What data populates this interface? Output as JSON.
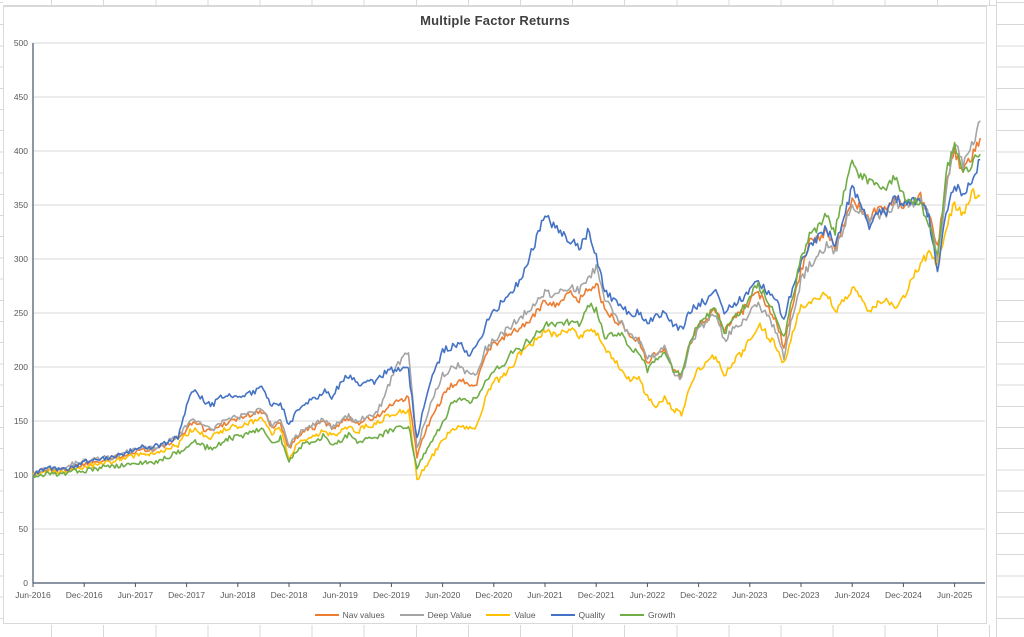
{
  "chart_title": "Multiple Factor Returns",
  "chart_data": {
    "type": "line",
    "title": "Multiple Factor Returns",
    "x_unit": "monthly",
    "x_start": "Jun-2016",
    "x_end": "Sep-2025",
    "x_tick_labels": [
      "Jun-2016",
      "Dec-2016",
      "Jun-2017",
      "Dec-2017",
      "Jun-2018",
      "Dec-2018",
      "Jun-2019",
      "Dec-2019",
      "Jun-2020",
      "Dec-2020",
      "Jun-2021",
      "Dec-2021",
      "Jun-2022",
      "Dec-2022",
      "Jun-2023",
      "Dec-2023",
      "Jun-2024",
      "Dec-2024",
      "Jun-2025"
    ],
    "y_ticks": [
      "0",
      "50",
      "100",
      "150",
      "200",
      "250",
      "300",
      "350",
      "400",
      "450",
      "500"
    ],
    "ylim": [
      0,
      500
    ],
    "grid": "horizontal",
    "legend_position": "bottom",
    "axis_color": "#44546A",
    "gridline_color": "#d9d9d9",
    "series": [
      {
        "name": "Nav values",
        "color": "#ED7D31",
        "values": [
          100,
          103,
          105,
          104,
          106,
          108,
          110,
          112,
          114,
          115,
          117,
          120,
          122,
          124,
          123,
          126,
          129,
          133,
          143,
          150,
          143,
          141,
          146,
          150,
          152,
          155,
          157,
          158,
          145,
          148,
          125,
          136,
          142,
          144,
          150,
          144,
          148,
          153,
          148,
          152,
          152,
          158,
          165,
          168,
          172,
          118,
          140,
          158,
          172,
          182,
          188,
          183,
          186,
          212,
          222,
          225,
          232,
          235,
          242,
          250,
          262,
          258,
          262,
          268,
          262,
          272,
          278,
          252,
          245,
          240,
          228,
          225,
          205,
          212,
          218,
          198,
          192,
          222,
          238,
          245,
          253,
          233,
          244,
          250,
          261,
          268,
          258,
          245,
          219,
          258,
          289,
          315,
          318,
          326,
          312,
          332,
          352,
          348,
          338,
          347,
          347,
          355,
          350,
          352,
          358,
          340,
          310,
          370,
          400,
          380,
          395,
          412
        ]
      },
      {
        "name": "Deep Value",
        "color": "#A5A5A5",
        "values": [
          100,
          104,
          107,
          106,
          108,
          111,
          113,
          115,
          116,
          116,
          118,
          121,
          124,
          126,
          124,
          128,
          132,
          136,
          146,
          152,
          144,
          142,
          148,
          152,
          153,
          156,
          158,
          160,
          146,
          150,
          127,
          138,
          144,
          146,
          152,
          145,
          150,
          155,
          148,
          154,
          156,
          168,
          190,
          205,
          215,
          124,
          152,
          175,
          192,
          199,
          202,
          193,
          196,
          216,
          226,
          230,
          238,
          245,
          252,
          260,
          270,
          266,
          270,
          276,
          270,
          280,
          292,
          262,
          250,
          242,
          228,
          225,
          207,
          212,
          218,
          196,
          190,
          220,
          235,
          242,
          248,
          224,
          235,
          240,
          250,
          258,
          248,
          235,
          210,
          248,
          280,
          295,
          302,
          314,
          305,
          330,
          350,
          345,
          335,
          340,
          342,
          352,
          350,
          350,
          356,
          340,
          302,
          362,
          408,
          388,
          405,
          428
        ]
      },
      {
        "name": "Value",
        "color": "#FFC000",
        "values": [
          100,
          102,
          104,
          103,
          104,
          106,
          107,
          109,
          111,
          112,
          114,
          116,
          118,
          120,
          119,
          122,
          125,
          128,
          138,
          144,
          137,
          135,
          140,
          144,
          145,
          148,
          150,
          152,
          139,
          143,
          116,
          128,
          134,
          136,
          142,
          136,
          140,
          146,
          140,
          146,
          146,
          152,
          156,
          158,
          160,
          95,
          108,
          120,
          132,
          140,
          146,
          142,
          145,
          172,
          186,
          190,
          200,
          212,
          218,
          226,
          234,
          230,
          232,
          234,
          228,
          234,
          232,
          216,
          208,
          198,
          188,
          190,
          172,
          162,
          172,
          160,
          157,
          182,
          198,
          205,
          210,
          193,
          205,
          212,
          225,
          240,
          230,
          220,
          202,
          230,
          256,
          260,
          262,
          270,
          252,
          262,
          273,
          268,
          250,
          258,
          264,
          252,
          265,
          280,
          295,
          306,
          295,
          330,
          352,
          340,
          362,
          358
        ]
      },
      {
        "name": "Quality",
        "color": "#4472C4",
        "values": [
          100,
          104,
          106,
          105,
          106,
          108,
          112,
          113,
          115,
          116,
          118,
          121,
          125,
          127,
          126,
          128,
          131,
          135,
          165,
          180,
          168,
          165,
          172,
          175,
          170,
          174,
          178,
          180,
          163,
          168,
          145,
          160,
          168,
          170,
          178,
          172,
          185,
          192,
          184,
          188,
          186,
          193,
          197,
          198,
          197,
          133,
          170,
          195,
          215,
          218,
          222,
          212,
          218,
          238,
          252,
          260,
          268,
          280,
          298,
          318,
          340,
          330,
          322,
          318,
          310,
          325,
          303,
          272,
          262,
          255,
          248,
          252,
          240,
          247,
          252,
          238,
          235,
          252,
          258,
          262,
          268,
          252,
          258,
          263,
          272,
          280,
          270,
          262,
          246,
          272,
          297,
          314,
          320,
          328,
          312,
          340,
          365,
          355,
          330,
          344,
          344,
          358,
          350,
          352,
          356,
          338,
          287,
          345,
          368,
          360,
          372,
          392
        ]
      },
      {
        "name": "Growth",
        "color": "#70AD47",
        "values": [
          98,
          100,
          102,
          101,
          102,
          104,
          104,
          105,
          107,
          107,
          108,
          110,
          110,
          112,
          111,
          114,
          117,
          121,
          126,
          132,
          126,
          125,
          130,
          134,
          135,
          138,
          141,
          142,
          130,
          134,
          113,
          124,
          130,
          131,
          136,
          129,
          132,
          137,
          130,
          133,
          134,
          138,
          141,
          144,
          146,
          106,
          122,
          135,
          148,
          165,
          172,
          168,
          172,
          186,
          198,
          202,
          212,
          216,
          224,
          230,
          240,
          238,
          240,
          242,
          240,
          258,
          252,
          228,
          232,
          232,
          218,
          215,
          198,
          208,
          214,
          196,
          193,
          225,
          240,
          248,
          256,
          231,
          246,
          252,
          266,
          276,
          264,
          250,
          226,
          264,
          300,
          322,
          330,
          340,
          325,
          360,
          392,
          376,
          372,
          368,
          368,
          376,
          358,
          355,
          350,
          332,
          302,
          380,
          405,
          378,
          388,
          397
        ]
      }
    ]
  }
}
